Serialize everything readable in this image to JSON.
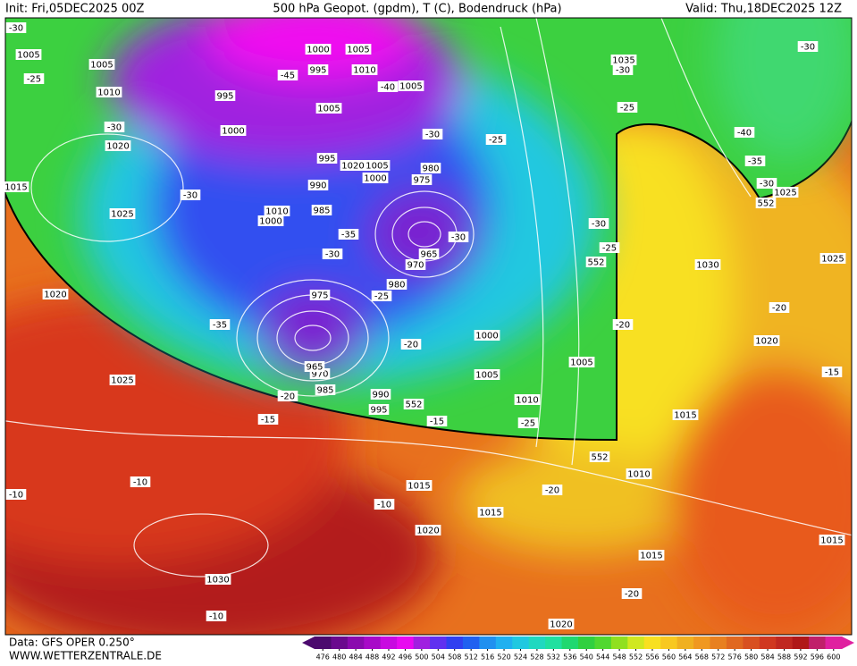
{
  "header": {
    "init": "Init: Fri,05DEC2025 00Z",
    "title": "500 hPa Geopot. (gpdm), T (C), Bodendruck (hPa)",
    "valid": "Valid: Thu,18DEC2025 12Z"
  },
  "map": {
    "labels": [
      "-30",
      "1005",
      "-25",
      "1005",
      "1010",
      "-30",
      "1020",
      "1015",
      "1025",
      "-30",
      "1020",
      "-35",
      "1025",
      "-15",
      "-20",
      "-10",
      "-10",
      "-10",
      "1030",
      "-10",
      "1015",
      "1015",
      "1020",
      "-20",
      "1010",
      "1015",
      "-20",
      "1020",
      "1015",
      "1015",
      "1020",
      "-20",
      "-15",
      "1025",
      "1030",
      "-25",
      "-30",
      "1025",
      "552",
      "-35",
      "-30",
      "-40",
      "-30",
      "1035",
      "-30",
      "-25",
      "-25",
      "-30",
      "980",
      "975",
      "-30",
      "965",
      "970",
      "980",
      "-25",
      "975",
      "-30",
      "-35",
      "985",
      "990",
      "995",
      "1020",
      "1005",
      "1000",
      "1000",
      "1010",
      "1005",
      "995",
      "1000",
      "1005",
      "1010",
      "1005",
      "-40",
      "-45",
      "995",
      "1000",
      "-20",
      "1000",
      "1005",
      "1010",
      "-25",
      "1005",
      "-20",
      "-15",
      "990",
      "995",
      "552",
      "552",
      "552",
      "985",
      "970",
      "965"
    ]
  },
  "colorbar": {
    "ticks": [
      476,
      480,
      484,
      488,
      492,
      496,
      500,
      504,
      508,
      512,
      516,
      520,
      524,
      528,
      532,
      536,
      540,
      544,
      548,
      552,
      556,
      560,
      564,
      568,
      572,
      576,
      580,
      584,
      588,
      592,
      596,
      600
    ]
  },
  "footer": {
    "data": "Data: GFS OPER 0.250°",
    "site": "WWW.WETTERZENTRALE.DE"
  }
}
